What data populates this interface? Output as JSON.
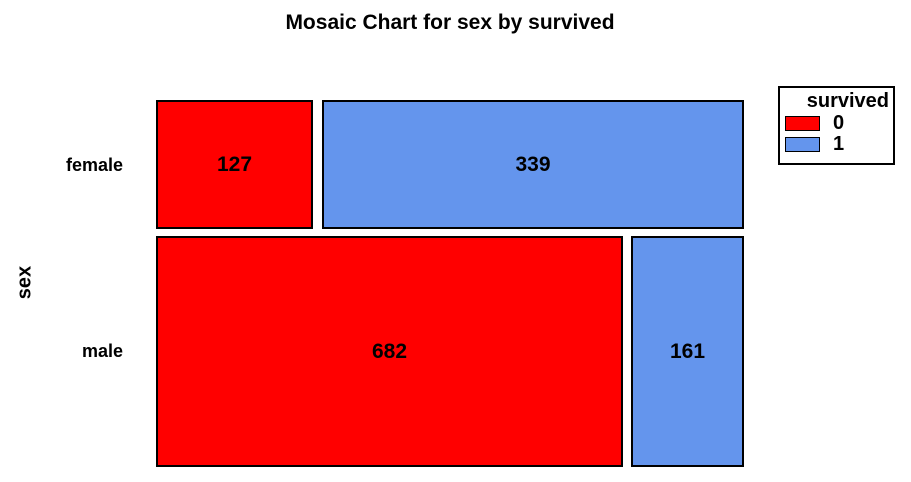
{
  "chart_data": {
    "type": "mosaic",
    "title": "Mosaic Chart for sex by survived",
    "ylabel": "sex",
    "row_variable": "sex",
    "column_variable": "survived",
    "row_categories": [
      "female",
      "male"
    ],
    "column_categories": [
      "0",
      "1"
    ],
    "rows": [
      {
        "label": "female",
        "cells": [
          {
            "col": "0",
            "count": 127
          },
          {
            "col": "1",
            "count": 339
          }
        ]
      },
      {
        "label": "male",
        "cells": [
          {
            "col": "0",
            "count": 682
          },
          {
            "col": "1",
            "count": 161
          }
        ]
      }
    ],
    "legend": {
      "title": "survived",
      "entries": [
        {
          "label": "0",
          "color": "#FF0000"
        },
        {
          "label": "1",
          "color": "#6495ED"
        }
      ]
    },
    "colors": {
      "survived_0": "#FF0000",
      "survived_1": "#6495ED",
      "cell_border": "#000000",
      "text": "#000000",
      "background": "#FFFFFF"
    },
    "layout": {
      "legend_position": "top-right",
      "grid": false,
      "cell_label_style": "count-centered"
    }
  }
}
